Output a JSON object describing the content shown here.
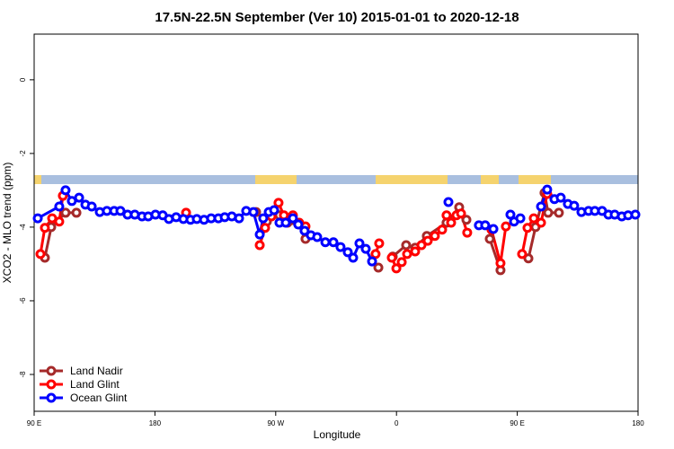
{
  "chart_data": {
    "type": "line",
    "title": "17.5N-22.5N September (Ver 10)   2015-01-01 to 2020-12-18",
    "x_label": "Longitude",
    "y_label": "XCO2 - MLO trend (ppm)",
    "xlim": [
      90,
      540
    ],
    "ylim": [
      -9,
      1.24
    ],
    "xticks": [
      {
        "value": 90,
        "label": "90 E"
      },
      180,
      {
        "value": 270,
        "label": "90 W"
      },
      {
        "value": 360,
        "label": "0"
      },
      {
        "value": 450,
        "label": "90 E"
      },
      {
        "value": 540,
        "label": "180"
      }
    ],
    "yticks": [
      -8,
      -6,
      -4,
      -2,
      0
    ],
    "legend": "bottom-left",
    "series": [
      {
        "name": "Land Nadir",
        "color": "#a52a2a",
        "x": [
          98.0,
          102.7,
          113.4,
          121.5,
          null,
          255.4,
          263.4,
          272.8,
          278.8,
          287.5,
          292.2,
          null,
          346.5,
          null,
          357.2,
          367.2,
          373.9,
          382.6,
          397.3,
          406.7,
          412.1,
          null,
          429.5,
          437.5,
          null,
          458.3,
          463.6,
          470.3,
          473.0,
          481.0
        ],
        "values": [
          -4.83,
          -4.0,
          -3.61,
          -3.61,
          null,
          -3.59,
          -3.85,
          -3.68,
          -3.88,
          -3.93,
          -4.32,
          null,
          -5.1,
          null,
          -4.8,
          -4.49,
          -4.56,
          -4.24,
          -3.88,
          -3.46,
          -3.8,
          null,
          -4.32,
          -5.17,
          null,
          -4.85,
          -4.0,
          -3.07,
          -3.61,
          -3.61
        ]
      },
      {
        "name": "Land Glint",
        "color": "#ff0000",
        "x": [
          94.7,
          98.0,
          103.4,
          108.7,
          111.4,
          null,
          203.2,
          null,
          258.1,
          262.1,
          266.8,
          272.1,
          276.1,
          282.8,
          287.5,
          292.2,
          null,
          344.4,
          347.1,
          null,
          356.5,
          359.9,
          363.9,
          367.9,
          373.9,
          378.6,
          383.3,
          388.6,
          394.0,
          397.3,
          400.7,
          404.7,
          408.1,
          412.7,
          null,
          430.8,
          437.5,
          441.5,
          null,
          453.6,
          457.6,
          462.3,
          467.7,
          472.3
        ],
        "values": [
          -4.73,
          -4.02,
          -3.76,
          -3.85,
          -3.15,
          null,
          -3.61,
          null,
          -4.49,
          -4.02,
          -3.71,
          -3.34,
          -3.68,
          -3.68,
          -3.88,
          -3.98,
          null,
          -4.73,
          -4.44,
          null,
          -4.83,
          -5.12,
          -4.95,
          -4.73,
          -4.66,
          -4.49,
          -4.37,
          -4.24,
          -4.07,
          -3.68,
          -3.88,
          -3.68,
          -3.63,
          -4.15,
          null,
          -4.07,
          -4.98,
          -3.98,
          null,
          -4.73,
          -4.02,
          -3.76,
          -3.88,
          -3.1
        ]
      },
      {
        "name": "Ocean Glint",
        "color": "#0000ff",
        "x": [
          92.7,
          108.7,
          113.4,
          118.1,
          123.5,
          128.2,
          132.9,
          138.9,
          144.2,
          149.6,
          154.3,
          159.6,
          165.0,
          170.4,
          175.0,
          180.4,
          185.8,
          190.4,
          195.8,
          201.2,
          206.5,
          211.2,
          216.6,
          221.9,
          227.3,
          232.0,
          237.3,
          242.7,
          248.0,
          253.4,
          258.1,
          260.7,
          264.8,
          268.8,
          272.8,
          277.5,
          282.8,
          286.8,
          291.5,
          296.2,
          300.9,
          307.0,
          313.0,
          318.3,
          323.7,
          327.7,
          332.4,
          337.1,
          341.8,
          null,
          398.7,
          null,
          421.4,
          426.1,
          432.2,
          null,
          444.9,
          447.6,
          452.3,
          null,
          467.7,
          472.3,
          477.7,
          482.4,
          487.7,
          492.4,
          497.8,
          503.1,
          507.8,
          513.2,
          517.9,
          522.6,
          527.9,
          532.6,
          538.0
        ],
        "values": [
          -3.76,
          -3.44,
          -3.0,
          -3.29,
          -3.2,
          -3.39,
          -3.44,
          -3.59,
          -3.56,
          -3.56,
          -3.56,
          -3.66,
          -3.66,
          -3.71,
          -3.71,
          -3.66,
          -3.68,
          -3.78,
          -3.73,
          -3.78,
          -3.8,
          -3.78,
          -3.8,
          -3.76,
          -3.76,
          -3.73,
          -3.71,
          -3.76,
          -3.56,
          -3.59,
          -4.2,
          -3.76,
          -3.59,
          -3.54,
          -3.88,
          -3.88,
          -3.76,
          -3.93,
          -4.1,
          -4.22,
          -4.27,
          -4.41,
          -4.41,
          -4.54,
          -4.68,
          -4.83,
          -4.44,
          -4.59,
          -4.93,
          null,
          -3.32,
          null,
          -3.95,
          -3.95,
          -4.05,
          null,
          -3.66,
          -3.85,
          -3.76,
          null,
          -3.44,
          -2.98,
          -3.24,
          -3.2,
          -3.37,
          -3.42,
          -3.59,
          -3.56,
          -3.56,
          -3.56,
          -3.66,
          -3.66,
          -3.71,
          -3.68,
          -3.66
        ]
      }
    ]
  }
}
